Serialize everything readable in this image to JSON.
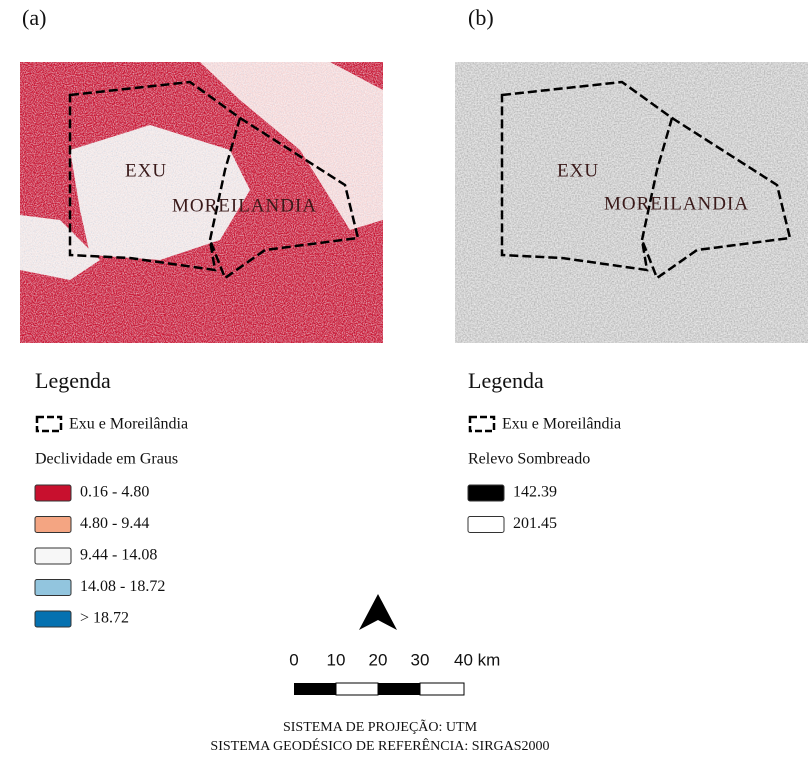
{
  "panels": [
    {
      "label": "(a)",
      "map": {
        "labels": [
          "EXU",
          "MOREILANDIA"
        ]
      },
      "legend": {
        "title": "Legenda",
        "boundary": "Exu e Moreilândia",
        "subtitle": "Declividade em Graus",
        "classes": [
          {
            "label": "0.16 - 4.80",
            "color": "#c8102e"
          },
          {
            "label": "4.80 - 9.44",
            "color": "#f4a582"
          },
          {
            "label": "9.44 - 14.08",
            "color": "#f7f7f7"
          },
          {
            "label": "14.08 - 18.72",
            "color": "#92c5de"
          },
          {
            "label": "> 18.72",
            "color": "#0571b0"
          }
        ]
      }
    },
    {
      "label": "(b)",
      "map": {
        "labels": [
          "EXU",
          "MOREILANDIA"
        ]
      },
      "legend": {
        "title": "Legenda",
        "boundary": "Exu e Moreilândia",
        "subtitle": "Relevo Sombreado",
        "classes": [
          {
            "label": "142.39",
            "color": "#000000"
          },
          {
            "label": "201.45",
            "color": "#ffffff"
          }
        ]
      }
    }
  ],
  "scale_bar": {
    "labels": [
      "0",
      "10",
      "20",
      "30",
      "40 km"
    ]
  },
  "footer": [
    "SISTEMA DE PROJEÇÃO: UTM",
    "SISTEMA GEODÉSICO DE REFERÊNCIA: SIRGAS2000"
  ]
}
